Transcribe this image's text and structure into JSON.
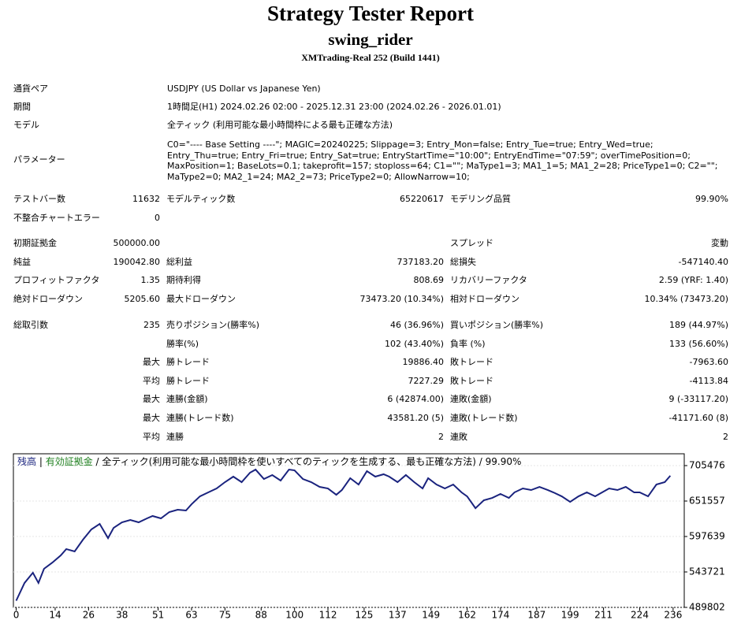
{
  "report": {
    "title": "Strategy Tester Report",
    "expert": "swing_rider",
    "server": "XMTrading-Real 252 (Build 1441)"
  },
  "info": [
    [
      "通貨ペア",
      "USDJPY (US Dollar vs Japanese Yen)"
    ],
    [
      "期間",
      "1時間足(H1) 2024.02.26 02:00 - 2025.12.31 23:00 (2024.02.26 - 2026.01.01)"
    ],
    [
      "モデル",
      "全ティック (利用可能な最小時間枠による最も正確な方法)"
    ],
    [
      "パラメーター",
      "C0=\"---- Base Setting ----\"; MAGIC=20240225; Slippage=3; Entry_Mon=false; Entry_Tue=true; Entry_Wed=true; Entry_Thu=true; Entry_Fri=true; Entry_Sat=true; EntryStartTime=\"10:00\"; EntryEndTime=\"07:59\"; overTimePosition=0; MaxPosition=1; BaseLots=0.1; takeprofit=157; stoploss=64; C1=\"\"; MaType1=3; MA1_1=5; MA1_2=28; PriceType1=0; C2=\"\"; MaType2=0; MA2_1=24; MA2_2=73; PriceType2=0; AllowNarrow=10;"
    ]
  ],
  "stats": [
    [
      [
        "テストバー数",
        "11632",
        "モデルティック数",
        "65220617",
        "モデリング品質",
        "99.90%"
      ],
      [
        "不整合チャートエラー",
        "0",
        null,
        null,
        null,
        null
      ]
    ],
    [
      [
        "初期証拠金",
        "500000.00",
        null,
        null,
        "スプレッド",
        "変動"
      ],
      [
        "純益",
        "190042.80",
        "総利益",
        "737183.20",
        "総損失",
        "-547140.40"
      ],
      [
        "プロフィットファクタ",
        "1.35",
        "期待利得",
        "808.69",
        "リカバリーファクタ",
        "2.59 (YRF: 1.40)"
      ],
      [
        "絶対ドローダウン",
        "5205.60",
        "最大ドローダウン",
        "73473.20 (10.34%)",
        "相対ドローダウン",
        "10.34% (73473.20)"
      ]
    ],
    [
      [
        "総取引数",
        "235",
        "売りポジション(勝率%)",
        "46 (36.96%)",
        "買いポジション(勝率%)",
        "189 (44.97%)"
      ],
      [
        null,
        null,
        "勝率(%)",
        "102 (43.40%)",
        "負率 (%)",
        "133 (56.60%)"
      ],
      [
        null,
        "最大",
        "勝トレード",
        "19886.40",
        "敗トレード",
        "-7963.60"
      ],
      [
        null,
        "平均",
        "勝トレード",
        "7227.29",
        "敗トレード",
        "-4113.84"
      ],
      [
        null,
        "最大",
        "連勝(金額)",
        "6 (42874.00)",
        "連敗(金額)",
        "9 (-33117.20)"
      ],
      [
        null,
        "最大",
        "連勝(トレード数)",
        "43581.20 (5)",
        "連敗(トレード数)",
        "-41171.60 (8)"
      ],
      [
        null,
        "平均",
        "連勝",
        "2",
        "連敗",
        "2"
      ]
    ]
  ],
  "chart_data": {
    "type": "line",
    "legend_separator": " | ",
    "equity_label": "有効証拠金",
    "equity_color": "#208020",
    "caption": " / 全ティック(利用可能な最小時間枠を使いすべてのティックを生成する、最も正確な方法) / 99.90%",
    "x": [
      0,
      3,
      6,
      8,
      10,
      13,
      16,
      18,
      21,
      24,
      27,
      30,
      33,
      35,
      38,
      41,
      44,
      47,
      49,
      52,
      55,
      58,
      61,
      63,
      66,
      69,
      72,
      75,
      78,
      81,
      84,
      86,
      89,
      92,
      95,
      98,
      100,
      103,
      106,
      109,
      112,
      115,
      117,
      120,
      123,
      126,
      129,
      132,
      134,
      137,
      140,
      143,
      146,
      148,
      151,
      154,
      157,
      160,
      162,
      165,
      168,
      171,
      174,
      177,
      179,
      182,
      185,
      188,
      191,
      193,
      196,
      199,
      202,
      205,
      208,
      210,
      213,
      216,
      219,
      222,
      224,
      227,
      230,
      233,
      235
    ],
    "series": [
      {
        "name": "残高",
        "color": "#1a237e",
        "values": [
          500000,
          527000,
          542500,
          527000,
          548500,
          558000,
          568900,
          578500,
          574900,
          592800,
          608400,
          616800,
          595200,
          610800,
          619200,
          622800,
          619200,
          625200,
          628800,
          625200,
          634800,
          638400,
          637200,
          646700,
          658700,
          664700,
          670700,
          680300,
          688700,
          680300,
          694700,
          699400,
          685100,
          691100,
          682700,
          699400,
          698200,
          685100,
          680300,
          673100,
          670700,
          661100,
          668300,
          686300,
          676700,
          697000,
          688700,
          692300,
          688700,
          680300,
          691100,
          680300,
          670700,
          686300,
          676700,
          670700,
          676700,
          664700,
          658700,
          640700,
          652700,
          656300,
          662300,
          656300,
          664700,
          670700,
          668300,
          673100,
          668300,
          664700,
          658700,
          650300,
          658700,
          664700,
          658700,
          663500,
          670700,
          668300,
          673100,
          664700,
          664700,
          658700,
          676700,
          680300,
          690043
        ]
      }
    ],
    "xlim": [
      -1,
      240
    ],
    "ylim": [
      489802,
      723446
    ],
    "xticks": [
      0,
      14,
      26,
      38,
      51,
      63,
      75,
      88,
      100,
      112,
      125,
      137,
      149,
      162,
      174,
      187,
      199,
      211,
      224,
      236
    ],
    "yticks": [
      489802,
      543721,
      597639,
      651557,
      705476
    ],
    "grid": true
  }
}
